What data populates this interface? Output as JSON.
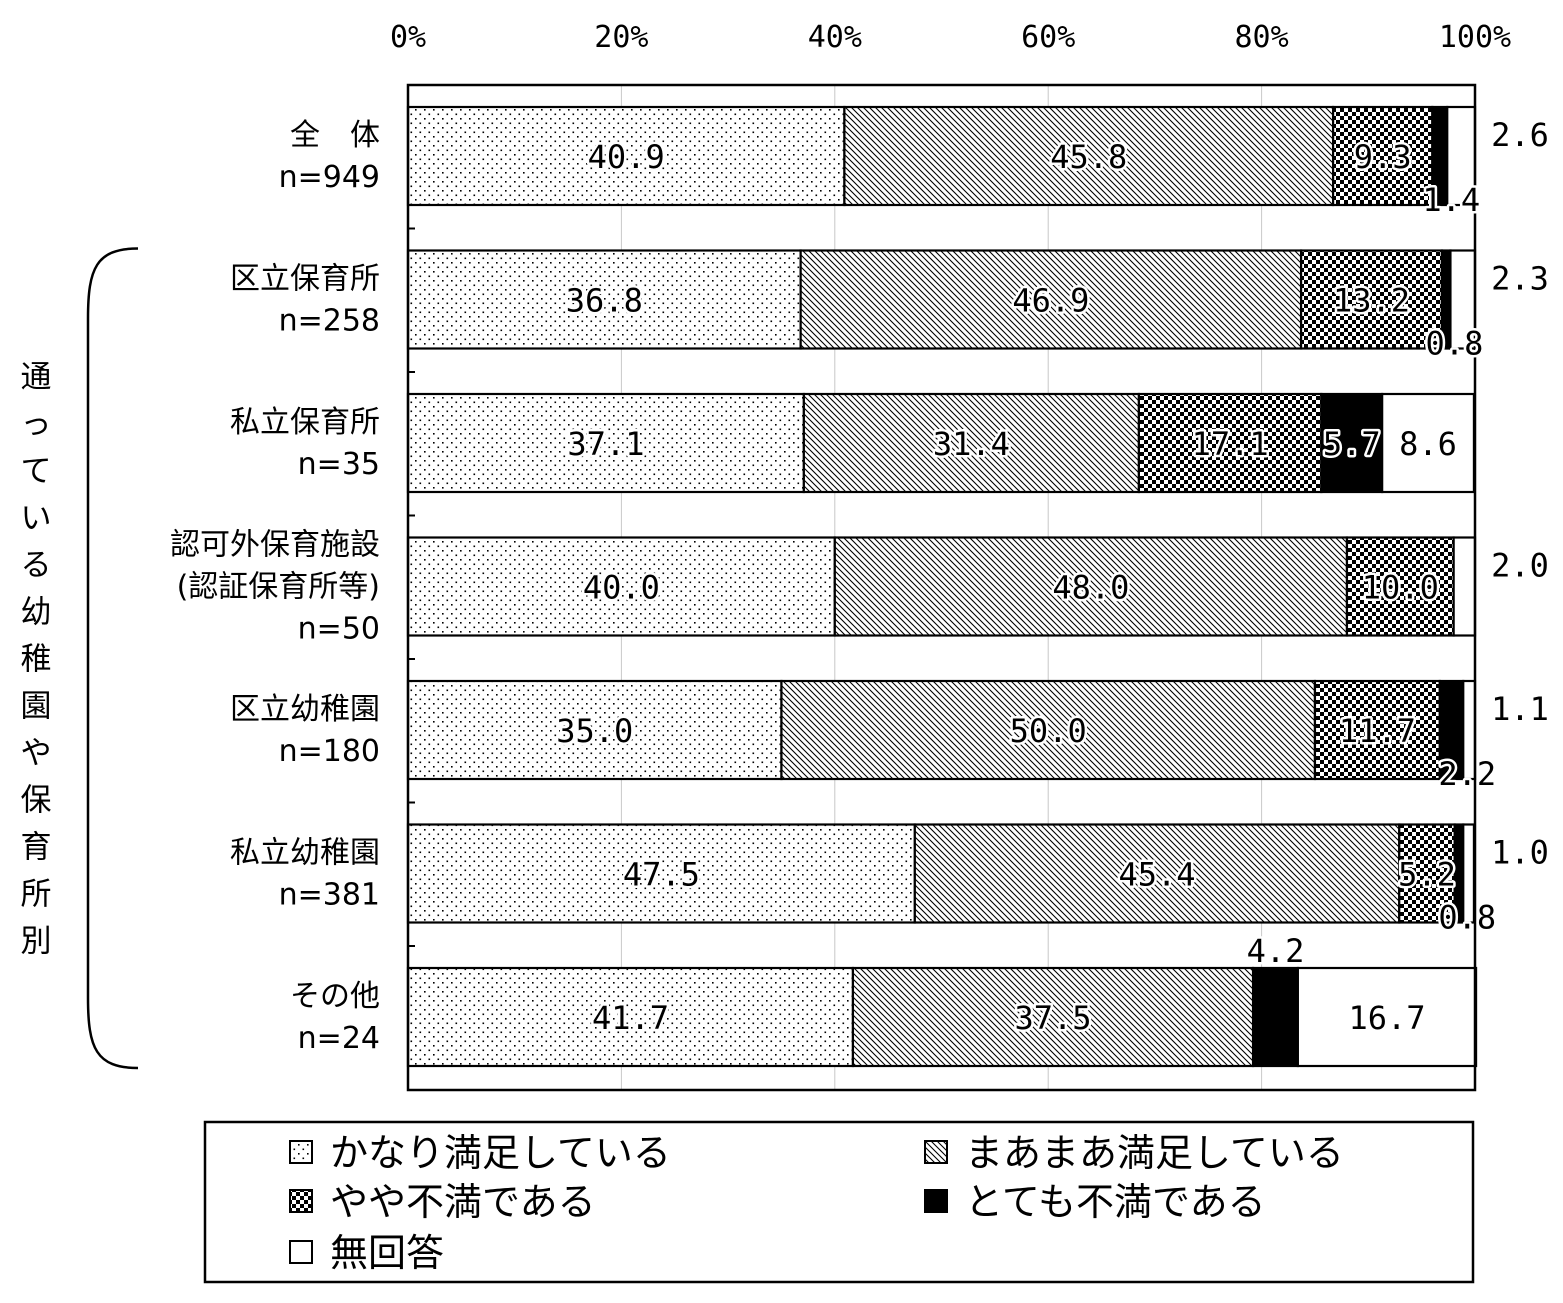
{
  "chart_data": {
    "type": "bar",
    "orientation": "horizontal",
    "stacked": true,
    "xlim": [
      0,
      100
    ],
    "x_ticks": [
      "0%",
      "20%",
      "40%",
      "60%",
      "80%",
      "100%"
    ],
    "side_label": "通っている幼稚園や保育所別",
    "categories": [
      {
        "lines": [
          "全　体",
          "n=949"
        ]
      },
      {
        "lines": [
          "区立保育所",
          "n=258"
        ]
      },
      {
        "lines": [
          "私立保育所",
          "n=35"
        ]
      },
      {
        "lines": [
          "認可外保育施設",
          "(認証保育所等)",
          "n=50"
        ]
      },
      {
        "lines": [
          "区立幼稚園",
          "n=180"
        ]
      },
      {
        "lines": [
          "私立幼稚園",
          "n=381"
        ]
      },
      {
        "lines": [
          "その他",
          "n=24"
        ]
      }
    ],
    "series": [
      {
        "name": "かなり満足している",
        "pattern": "dots",
        "values": [
          40.9,
          36.8,
          37.1,
          40.0,
          35.0,
          47.5,
          41.7
        ],
        "labels": [
          "40.9",
          "36.8",
          "37.1",
          "40.0",
          "35.0",
          "47.5",
          "41.7"
        ]
      },
      {
        "name": "まあまあ満足している",
        "pattern": "diag",
        "values": [
          45.8,
          46.9,
          31.4,
          48.0,
          50.0,
          45.4,
          37.5
        ],
        "labels": [
          "45.8",
          "46.9",
          "31.4",
          "48.0",
          "50.0",
          "45.4",
          "37.5"
        ]
      },
      {
        "name": "やや不満である",
        "pattern": "check",
        "values": [
          9.3,
          13.2,
          17.1,
          10.0,
          11.7,
          5.2,
          0
        ],
        "labels": [
          "9.3",
          "13.2",
          "17.1",
          "10.0",
          "11.7",
          "5.2",
          ""
        ]
      },
      {
        "name": "とても不満である",
        "pattern": "solid",
        "values": [
          1.4,
          0.8,
          5.7,
          0,
          2.2,
          0.8,
          4.2
        ],
        "labels": [
          "1.4",
          "0.8",
          "5.7",
          "",
          "2.2",
          "0.8",
          "4.2"
        ]
      },
      {
        "name": "無回答",
        "pattern": "blank",
        "values": [
          2.6,
          2.3,
          8.6,
          2.0,
          1.1,
          1.0,
          16.7
        ],
        "labels": [
          "2.6",
          "2.3",
          "8.6",
          "2.0",
          "1.1",
          "1.0",
          "16.7"
        ]
      }
    ],
    "legend": {
      "placement": "bottom",
      "items": [
        "かなり満足している",
        "まあまあ満足している",
        "やや不満である",
        "とても不満である",
        "無回答"
      ]
    },
    "colors": {
      "stroke": "#000000",
      "background": "#ffffff",
      "solid": "#000000"
    }
  }
}
